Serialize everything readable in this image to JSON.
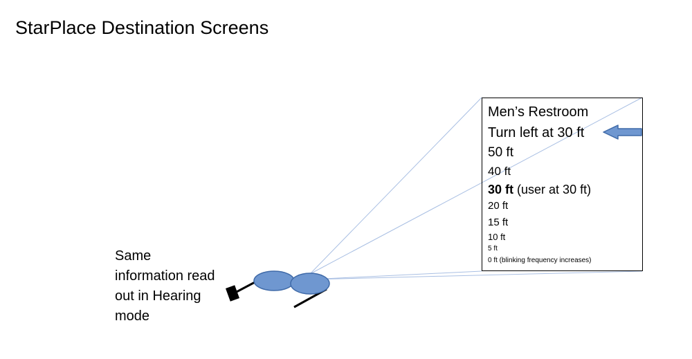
{
  "title": "StarPlace Destination Screens",
  "screen": {
    "destination": "Men’s Restroom",
    "instruction": "Turn left at 30 ft",
    "distances": {
      "d50": "50 ft",
      "d40": "40 ft",
      "d30_value": "30 ft",
      "d30_note": "(user at 30 ft)",
      "d20": "20 ft",
      "d15": "15 ft",
      "d10": "10 ft",
      "d5": "5 ft",
      "d0": "0 ft (blinking frequency increases)"
    }
  },
  "hearing_note": "Same information read out in Hearing mode",
  "icons": {
    "direction_arrow": "left-arrow-icon",
    "glasses": "smart-glasses-icon"
  },
  "colors": {
    "lens_fill": "#6f97d0",
    "lens_stroke": "#3f6aa8",
    "sightline": "#a9bfe3",
    "arrow_fill": "#6f97d0"
  }
}
